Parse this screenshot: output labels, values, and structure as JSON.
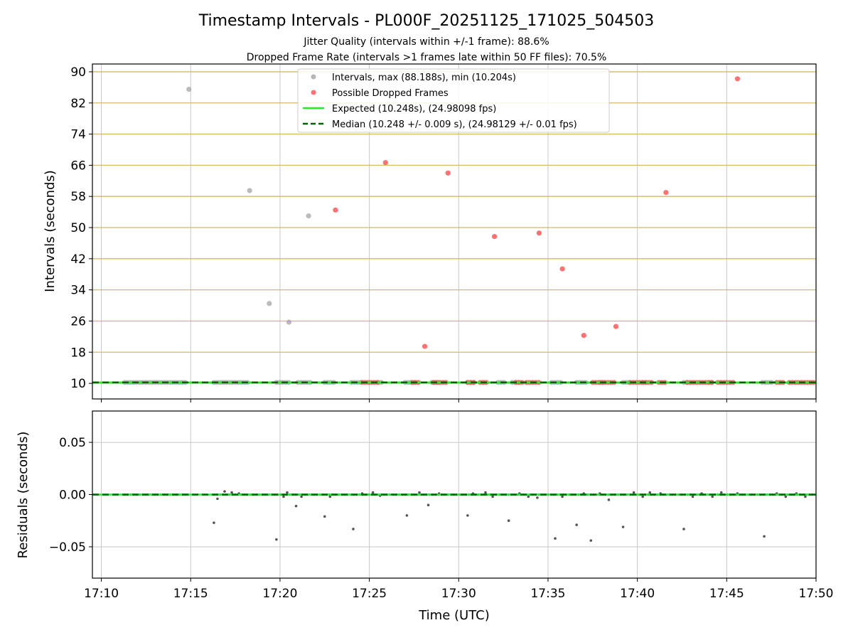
{
  "figure": {
    "title": "Timestamp Intervals - PL000F_20251125_171025_504503",
    "subtitle_1": "Jitter Quality (intervals within +/-1 frame): 88.6%",
    "subtitle_2": "Dropped Frame Rate (intervals >1 frames late within 50 FF files): 70.5%"
  },
  "colors": {
    "intervals": "#9e9e9e",
    "dropped": "#ff4d4d",
    "expected": "#22ee22",
    "median": "#006400",
    "residuals": "#555555",
    "hgrid_top": "#d4b96a",
    "grid": "#c8c8c8"
  },
  "chart_data": [
    {
      "type": "scatter",
      "xlabel": "",
      "ylabel": "Intervals (seconds)",
      "x_unit": "minutes (UTC clock time)",
      "xlim": [
        "17:09.5",
        "17:50"
      ],
      "ylim": [
        6,
        92
      ],
      "yticks": [
        "10",
        "18",
        "26",
        "34",
        "42",
        "50",
        "58",
        "66",
        "74",
        "82",
        "90"
      ],
      "xticks": [
        "17:10",
        "17:15",
        "17:20",
        "17:25",
        "17:30",
        "17:35",
        "17:40",
        "17:45",
        "17:50"
      ],
      "grid": "on",
      "legend_placement": "top-center",
      "legend": [
        "Intervals, max (88.188s), min (10.204s)",
        "Possible Dropped Frames",
        "Expected (10.248s), (24.98098 fps)",
        "Median (10.248 +/- 0.009 s), (24.98129 +/- 0.01 fps)"
      ],
      "expected_line": 10.248,
      "median_line": 10.248,
      "series": [
        {
          "name": "Intervals, max (88.188s), min (10.204s)",
          "outliers": [
            {
              "x": "17:14.9",
              "y": 85.5
            },
            {
              "x": "17:18.3",
              "y": 59.5
            },
            {
              "x": "17:19.4",
              "y": 30.5
            },
            {
              "x": "17:20.5",
              "y": 25.7
            },
            {
              "x": "17:21.6",
              "y": 53.0
            }
          ],
          "baseline_value": 10.25,
          "baseline_runs": [
            [
              "17:11.3",
              "17:14.8"
            ],
            [
              "17:16.3",
              "17:18.3"
            ],
            [
              "17:19.8",
              "17:20.5"
            ],
            [
              "17:21.0",
              "17:21.8"
            ],
            [
              "17:22.5",
              "17:23.1"
            ],
            [
              "17:24.0",
              "17:24.6"
            ],
            [
              "17:25.5",
              "17:25.8"
            ],
            [
              "17:27.0",
              "17:27.6"
            ],
            [
              "17:28.5",
              "17:28.9"
            ],
            [
              "17:30.5",
              "17:30.9"
            ],
            [
              "17:32.2",
              "17:32.6"
            ],
            [
              "17:33.0",
              "17:33.5"
            ],
            [
              "17:35.2",
              "17:35.8"
            ],
            [
              "17:36.6",
              "17:37.2"
            ],
            [
              "17:37.9",
              "17:38.2"
            ],
            [
              "17:39.2",
              "17:39.6"
            ],
            [
              "17:40.3",
              "17:40.6"
            ],
            [
              "17:42.6",
              "17:42.9"
            ],
            [
              "17:44.0",
              "17:44.3"
            ],
            [
              "17:47.0",
              "17:47.6"
            ]
          ]
        },
        {
          "name": "Possible Dropped Frames",
          "outliers": [
            {
              "x": "17:23.1",
              "y": 54.5
            },
            {
              "x": "17:25.9",
              "y": 66.7
            },
            {
              "x": "17:28.1",
              "y": 19.5
            },
            {
              "x": "17:29.4",
              "y": 64.0
            },
            {
              "x": "17:32.0",
              "y": 47.7
            },
            {
              "x": "17:34.5",
              "y": 48.6
            },
            {
              "x": "17:35.8",
              "y": 39.4
            },
            {
              "x": "17:37.0",
              "y": 22.3
            },
            {
              "x": "17:38.8",
              "y": 24.6
            },
            {
              "x": "17:41.6",
              "y": 59.0
            },
            {
              "x": "17:45.6",
              "y": 88.2
            }
          ],
          "baseline_value": 10.25,
          "baseline_runs": [
            [
              "17:24.6",
              "17:25.6"
            ],
            [
              "17:27.4",
              "17:27.9"
            ],
            [
              "17:28.6",
              "17:29.3"
            ],
            [
              "17:30.5",
              "17:30.9"
            ],
            [
              "17:31.2",
              "17:31.7"
            ],
            [
              "17:33.2",
              "17:33.6"
            ],
            [
              "17:33.8",
              "17:34.5"
            ],
            [
              "17:37.5",
              "17:38.8"
            ],
            [
              "17:39.6",
              "17:40.8"
            ],
            [
              "17:41.2",
              "17:41.6"
            ],
            [
              "17:42.8",
              "17:44.2"
            ],
            [
              "17:44.5",
              "17:45.4"
            ],
            [
              "17:47.8",
              "17:48.3"
            ],
            [
              "17:48.5",
              "17:50.0"
            ]
          ]
        }
      ]
    },
    {
      "type": "scatter",
      "xlabel": "Time (UTC)",
      "ylabel": "Residuals (seconds)",
      "ylim": [
        -0.08,
        0.08
      ],
      "yticks": [
        "0.05",
        "0.00",
        "−0.05"
      ],
      "ytick_values": [
        0.05,
        0.0,
        -0.05
      ],
      "xticks": [
        "17:10",
        "17:15",
        "17:20",
        "17:25",
        "17:30",
        "17:35",
        "17:40",
        "17:45",
        "17:50"
      ],
      "grid": "on",
      "zero_line": 0,
      "series": [
        {
          "name": "",
          "points": [
            {
              "x": "17:16.3",
              "y": -0.027
            },
            {
              "x": "17:16.5",
              "y": -0.004
            },
            {
              "x": "17:16.9",
              "y": 0.003
            },
            {
              "x": "17:17.3",
              "y": 0.002
            },
            {
              "x": "17:17.7",
              "y": 0.001
            },
            {
              "x": "17:19.8",
              "y": -0.043
            },
            {
              "x": "17:20.2",
              "y": -0.002
            },
            {
              "x": "17:20.4",
              "y": 0.002
            },
            {
              "x": "17:20.9",
              "y": -0.011
            },
            {
              "x": "17:21.2",
              "y": -0.002
            },
            {
              "x": "17:22.5",
              "y": -0.021
            },
            {
              "x": "17:22.8",
              "y": -0.002
            },
            {
              "x": "17:24.1",
              "y": -0.033
            },
            {
              "x": "17:24.6",
              "y": 0.001
            },
            {
              "x": "17:25.2",
              "y": 0.002
            },
            {
              "x": "17:25.6",
              "y": -0.001
            },
            {
              "x": "17:27.1",
              "y": -0.02
            },
            {
              "x": "17:27.8",
              "y": 0.002
            },
            {
              "x": "17:28.3",
              "y": -0.01
            },
            {
              "x": "17:28.9",
              "y": 0.001
            },
            {
              "x": "17:30.5",
              "y": -0.02
            },
            {
              "x": "17:30.8",
              "y": 0.001
            },
            {
              "x": "17:31.5",
              "y": 0.002
            },
            {
              "x": "17:31.9",
              "y": -0.002
            },
            {
              "x": "17:32.8",
              "y": -0.025
            },
            {
              "x": "17:33.4",
              "y": 0.001
            },
            {
              "x": "17:33.9",
              "y": -0.002
            },
            {
              "x": "17:34.4",
              "y": -0.003
            },
            {
              "x": "17:35.4",
              "y": -0.042
            },
            {
              "x": "17:35.8",
              "y": -0.002
            },
            {
              "x": "17:36.6",
              "y": -0.029
            },
            {
              "x": "17:37.0",
              "y": 0.001
            },
            {
              "x": "17:37.4",
              "y": -0.044
            },
            {
              "x": "17:37.9",
              "y": 0.001
            },
            {
              "x": "17:38.4",
              "y": -0.005
            },
            {
              "x": "17:39.2",
              "y": -0.031
            },
            {
              "x": "17:39.8",
              "y": 0.002
            },
            {
              "x": "17:40.3",
              "y": -0.002
            },
            {
              "x": "17:40.7",
              "y": 0.002
            },
            {
              "x": "17:41.3",
              "y": 0.001
            },
            {
              "x": "17:42.6",
              "y": -0.033
            },
            {
              "x": "17:43.1",
              "y": -0.002
            },
            {
              "x": "17:43.6",
              "y": 0.001
            },
            {
              "x": "17:44.2",
              "y": -0.002
            },
            {
              "x": "17:44.7",
              "y": 0.002
            },
            {
              "x": "17:45.6",
              "y": 0.001
            },
            {
              "x": "17:47.1",
              "y": -0.04
            },
            {
              "x": "17:47.8",
              "y": 0.001
            },
            {
              "x": "17:48.3",
              "y": -0.002
            },
            {
              "x": "17:48.9",
              "y": 0.001
            },
            {
              "x": "17:49.4",
              "y": -0.002
            }
          ],
          "baseline_value": 0.0,
          "baseline_runs": [
            [
              "17:11.3",
              "17:15.0"
            ],
            [
              "17:16.3",
              "17:50.0"
            ]
          ]
        }
      ]
    }
  ]
}
